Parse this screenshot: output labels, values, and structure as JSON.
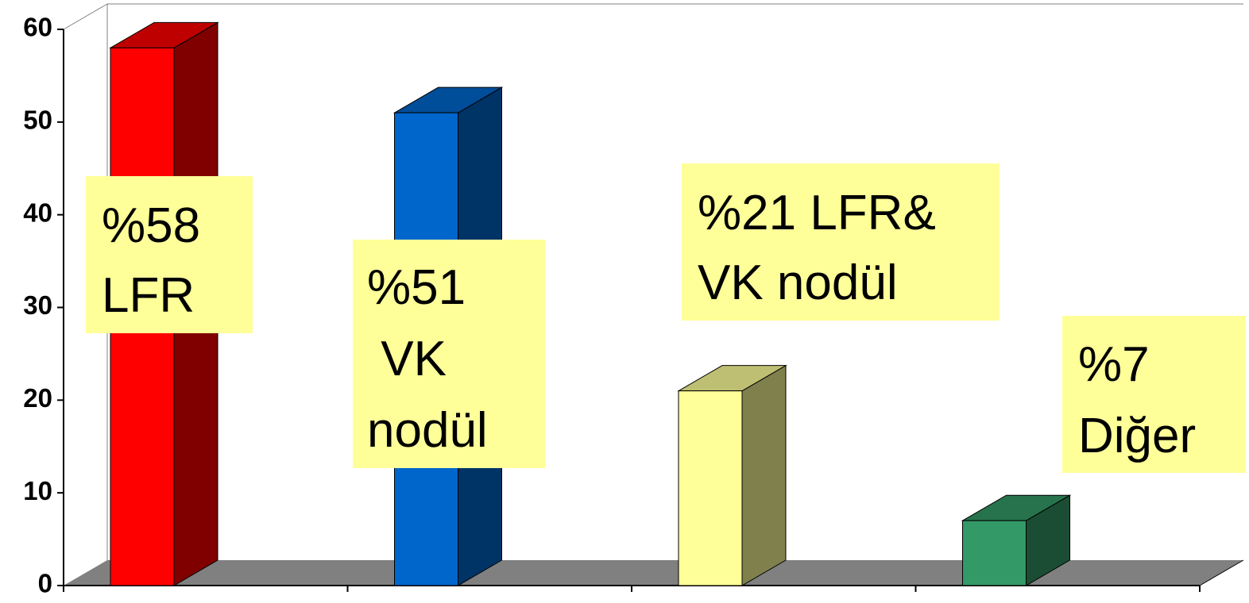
{
  "chart_data": {
    "type": "bar3d",
    "categories": [
      null,
      null,
      null,
      null
    ],
    "values": [
      58,
      51,
      21,
      7
    ],
    "colors": [
      "#ff0000",
      "#0066cc",
      "#ffff99",
      "#339966"
    ],
    "ylim": [
      0,
      60
    ],
    "yticks": [
      0,
      10,
      20,
      30,
      40,
      50,
      60
    ],
    "grid": false,
    "annotations": [
      {
        "lines": [
          "%58",
          "LFR"
        ]
      },
      {
        "lines": [
          "%51",
          " VK",
          "nodül"
        ]
      },
      {
        "lines": [
          "%21 LFR&",
          "VK nodül"
        ]
      },
      {
        "lines": [
          "%7",
          "Diğer"
        ]
      }
    ]
  }
}
